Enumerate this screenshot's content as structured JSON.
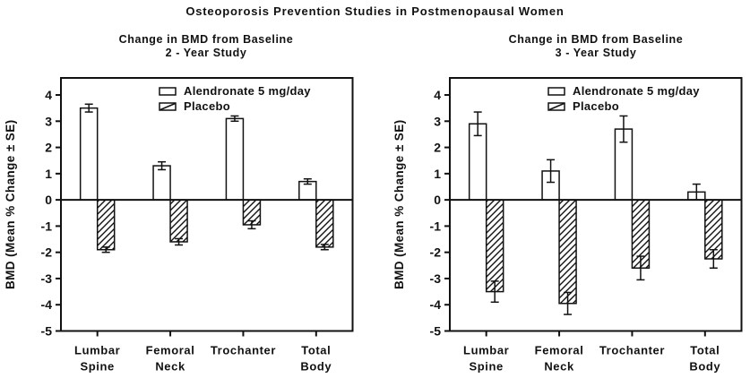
{
  "title": "Osteoporosis Prevention Studies in Postmenopausal Women",
  "colors": {
    "ink": "#111111",
    "background": "#ffffff"
  },
  "chart_data": [
    {
      "type": "bar",
      "title": [
        "Change in BMD from Baseline",
        "2 - Year Study"
      ],
      "ylabel": "BMD (Mean % Change ± SE)",
      "ylim": [
        -5,
        4.65
      ],
      "yticks": [
        4,
        3,
        2,
        1,
        0,
        -1,
        -2,
        -3,
        -4,
        -5
      ],
      "categories": [
        [
          "Lumbar",
          "Spine"
        ],
        [
          "Femoral",
          "Neck"
        ],
        [
          "Trochanter"
        ],
        [
          "Total",
          "Body"
        ]
      ],
      "grid": false,
      "legend_position": "inside-top",
      "series": [
        {
          "name": "Alendronate 5 mg/day",
          "style": "open",
          "values": [
            3.5,
            1.3,
            3.1,
            0.7
          ],
          "se": [
            0.15,
            0.15,
            0.1,
            0.1
          ]
        },
        {
          "name": "Placebo",
          "style": "hatched",
          "values": [
            -1.9,
            -1.6,
            -0.95,
            -1.8
          ],
          "se": [
            0.1,
            0.12,
            0.15,
            0.1
          ]
        }
      ]
    },
    {
      "type": "bar",
      "title": [
        "Change in BMD from Baseline",
        "3 - Year Study"
      ],
      "ylabel": "BMD (Mean % Change ± SE)",
      "ylim": [
        -5,
        4.65
      ],
      "yticks": [
        4,
        3,
        2,
        1,
        0,
        -1,
        -2,
        -3,
        -4,
        -5
      ],
      "categories": [
        [
          "Lumbar",
          "Spine"
        ],
        [
          "Femoral",
          "Neck"
        ],
        [
          "Trochanter"
        ],
        [
          "Total",
          "Body"
        ]
      ],
      "grid": false,
      "legend_position": "inside-top",
      "series": [
        {
          "name": "Alendronate 5 mg/day",
          "style": "open",
          "values": [
            2.9,
            1.1,
            2.7,
            0.3
          ],
          "se": [
            0.45,
            0.43,
            0.5,
            0.3
          ]
        },
        {
          "name": "Placebo",
          "style": "hatched",
          "values": [
            -3.5,
            -3.95,
            -2.6,
            -2.25
          ],
          "se": [
            0.4,
            0.42,
            0.45,
            0.35
          ]
        }
      ]
    }
  ]
}
